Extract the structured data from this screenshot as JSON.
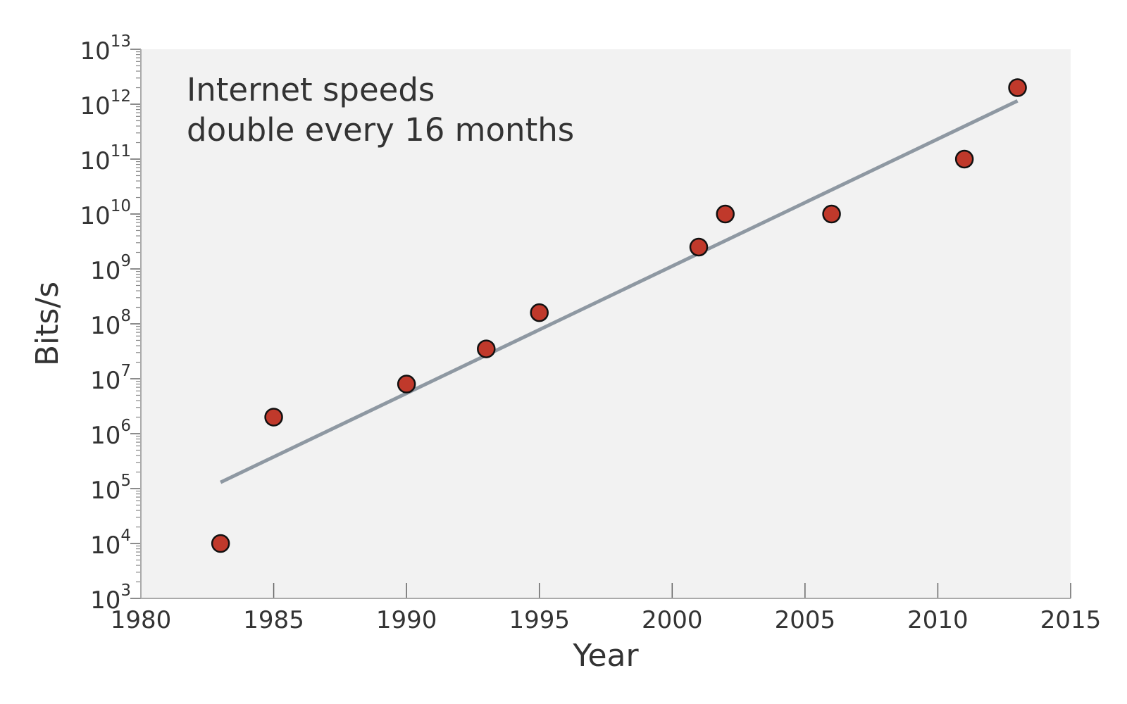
{
  "chart_data": {
    "type": "scatter",
    "title": "",
    "annotation": [
      "Internet speeds",
      "double every 16 months"
    ],
    "xlabel": "Year",
    "ylabel": "Bits/s",
    "xlim": [
      1980,
      2015
    ],
    "ylim": [
      1000,
      10000000000000
    ],
    "yscale": "log",
    "x_ticks": [
      1980,
      1985,
      1990,
      1995,
      2000,
      2005,
      2010,
      2015
    ],
    "y_ticks": [
      {
        "base": "10",
        "exp": "3",
        "value": 1000
      },
      {
        "base": "10",
        "exp": "4",
        "value": 10000
      },
      {
        "base": "10",
        "exp": "5",
        "value": 100000
      },
      {
        "base": "10",
        "exp": "6",
        "value": 1000000
      },
      {
        "base": "10",
        "exp": "7",
        "value": 10000000
      },
      {
        "base": "10",
        "exp": "8",
        "value": 100000000
      },
      {
        "base": "10",
        "exp": "9",
        "value": 1000000000
      },
      {
        "base": "10",
        "exp": "10",
        "value": 10000000000
      },
      {
        "base": "10",
        "exp": "11",
        "value": 100000000000
      },
      {
        "base": "10",
        "exp": "12",
        "value": 1000000000000
      },
      {
        "base": "10",
        "exp": "13",
        "value": 10000000000000
      }
    ],
    "points": [
      {
        "x": 1983,
        "y": 10000
      },
      {
        "x": 1985,
        "y": 2000000
      },
      {
        "x": 1990,
        "y": 8000000
      },
      {
        "x": 1993,
        "y": 35000000
      },
      {
        "x": 1995,
        "y": 160000000
      },
      {
        "x": 2001,
        "y": 2500000000
      },
      {
        "x": 2002,
        "y": 10000000000
      },
      {
        "x": 2006,
        "y": 10000000000
      },
      {
        "x": 2011,
        "y": 100000000000
      },
      {
        "x": 2013,
        "y": 2000000000000
      }
    ],
    "trend_line": [
      {
        "x": 1983,
        "y": 130000
      },
      {
        "x": 2013,
        "y": 1150000000000
      }
    ],
    "grid": false,
    "colors": {
      "plot_background": "#f2f2f2",
      "point_fill": "#c0392b",
      "point_stroke": "#111111",
      "trend_line": "#8e98a2",
      "axis": "#aaaaaa",
      "text": "#333333"
    }
  }
}
